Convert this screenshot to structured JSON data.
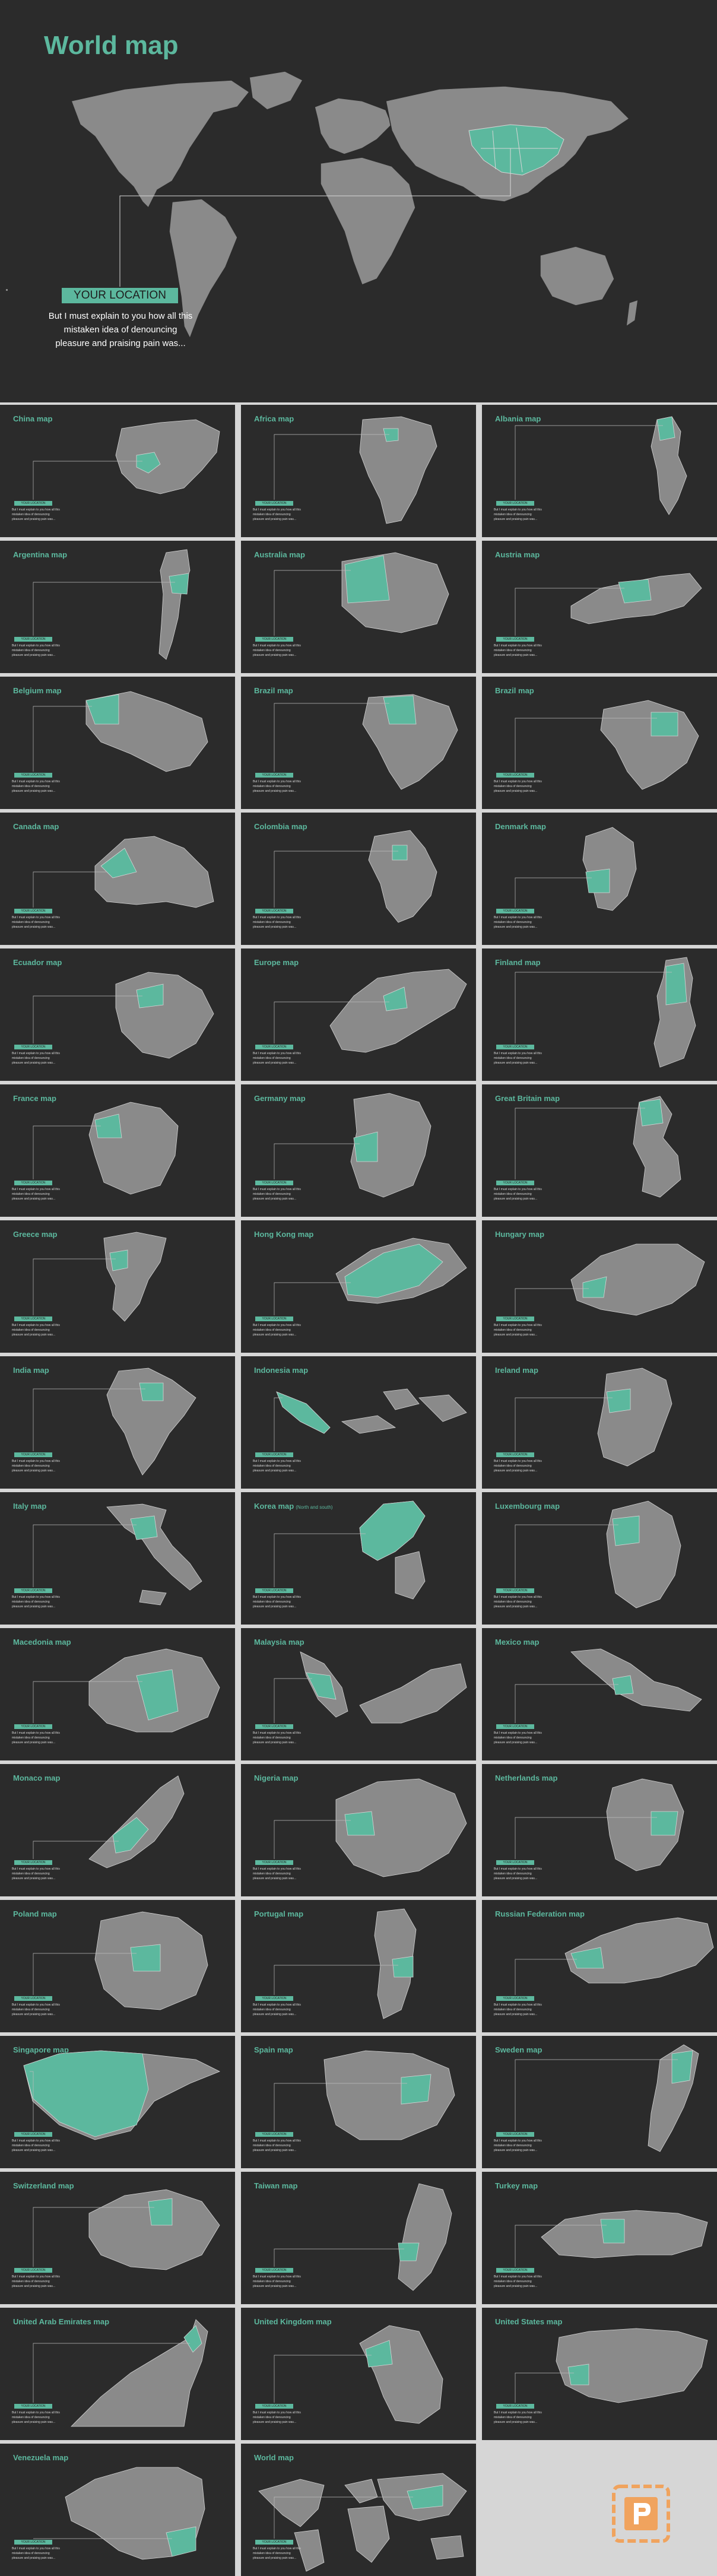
{
  "hero": {
    "title": "World map",
    "location_label": "YOUR LOCATION",
    "description": [
      "But I must explain to you how all this",
      "mistaken idea of denouncing",
      "pleasure and praising pain was..."
    ]
  },
  "card_defaults": {
    "location_label": "YOUR LOCATION",
    "description": [
      "But I must explain to you how all this",
      "mistaken idea of denouncing",
      "pleasure and praising pain was..."
    ]
  },
  "cards": [
    {
      "title": "China map",
      "shape": "china"
    },
    {
      "title": "Africa map",
      "shape": "africa"
    },
    {
      "title": "Albania map",
      "shape": "albania"
    },
    {
      "title": "Argentina map",
      "shape": "argentina"
    },
    {
      "title": "Australia map",
      "shape": "australia"
    },
    {
      "title": "Austria map",
      "shape": "austria"
    },
    {
      "title": "Belgium map",
      "shape": "belgium"
    },
    {
      "title": "Brazil map",
      "shape": "brazil"
    },
    {
      "title": "Brazil map",
      "shape": "brazil2"
    },
    {
      "title": "Canada map",
      "shape": "canada"
    },
    {
      "title": "Colombia map",
      "shape": "colombia"
    },
    {
      "title": "Denmark map",
      "shape": "denmark"
    },
    {
      "title": "Ecuador map",
      "shape": "ecuador"
    },
    {
      "title": "Europe map",
      "shape": "europe"
    },
    {
      "title": "Finland map",
      "shape": "finland"
    },
    {
      "title": "France map",
      "shape": "france"
    },
    {
      "title": "Germany map",
      "shape": "germany"
    },
    {
      "title": "Great Britain map",
      "shape": "gb"
    },
    {
      "title": "Greece map",
      "shape": "greece"
    },
    {
      "title": "Hong Kong map",
      "shape": "hongkong"
    },
    {
      "title": "Hungary map",
      "shape": "hungary"
    },
    {
      "title": "India map",
      "shape": "india"
    },
    {
      "title": "Indonesia map",
      "shape": "indonesia"
    },
    {
      "title": "Ireland map",
      "shape": "ireland"
    },
    {
      "title": "Italy map",
      "shape": "italy"
    },
    {
      "title": "Korea map",
      "subtitle": "(North and south)",
      "shape": "korea"
    },
    {
      "title": "Luxembourg map",
      "shape": "luxembourg"
    },
    {
      "title": "Macedonia map",
      "shape": "macedonia"
    },
    {
      "title": "Malaysia map",
      "shape": "malaysia"
    },
    {
      "title": "Mexico map",
      "shape": "mexico"
    },
    {
      "title": "Monaco map",
      "shape": "monaco"
    },
    {
      "title": "Nigeria map",
      "shape": "nigeria"
    },
    {
      "title": "Netherlands map",
      "shape": "netherlands"
    },
    {
      "title": "Poland map",
      "shape": "poland"
    },
    {
      "title": "Portugal map",
      "shape": "portugal"
    },
    {
      "title": "Russian Federation map",
      "shape": "russia"
    },
    {
      "title": "Singapore map",
      "shape": "singapore"
    },
    {
      "title": "Spain map",
      "shape": "spain"
    },
    {
      "title": "Sweden map",
      "shape": "sweden"
    },
    {
      "title": "Switzerland map",
      "shape": "switzerland"
    },
    {
      "title": "Taiwan map",
      "shape": "taiwan"
    },
    {
      "title": "Turkey map",
      "shape": "turkey"
    },
    {
      "title": "United Arab Emirates map",
      "shape": "uae"
    },
    {
      "title": "United Kingdom map",
      "shape": "uk"
    },
    {
      "title": "United States map",
      "shape": "usa"
    },
    {
      "title": "Venezuela map",
      "shape": "venezuela"
    },
    {
      "title": "World map",
      "shape": "world"
    }
  ],
  "colors": {
    "background": "#2b2b2b",
    "accent": "#5cb89e",
    "land": "#8a8a8a",
    "border": "#d6d6d6",
    "logo": "#f0a35e"
  },
  "logo_icon": "p-logo-icon"
}
